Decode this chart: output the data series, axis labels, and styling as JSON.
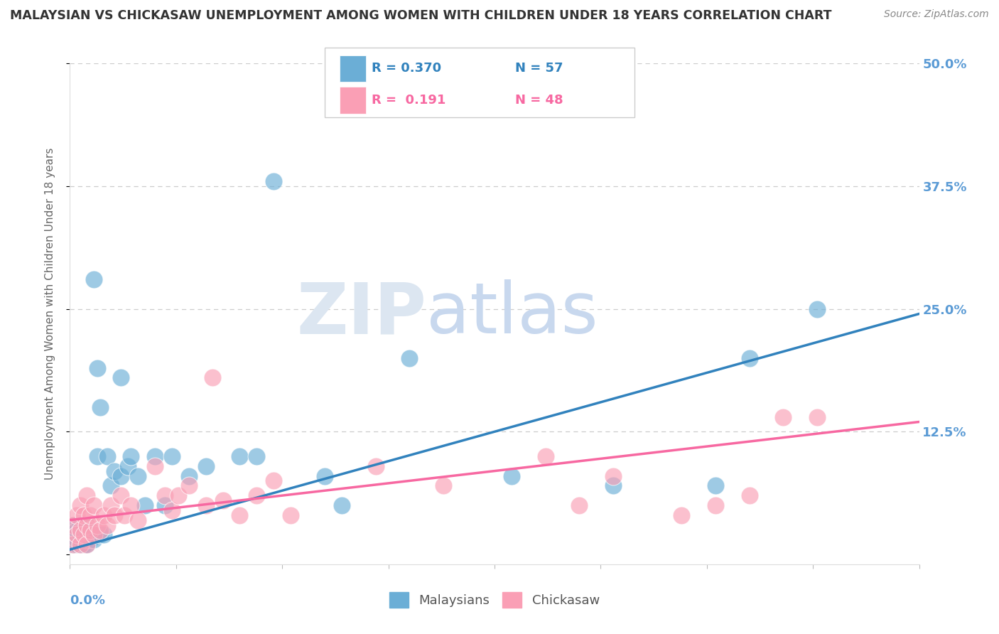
{
  "title": "MALAYSIAN VS CHICKASAW UNEMPLOYMENT AMONG WOMEN WITH CHILDREN UNDER 18 YEARS CORRELATION CHART",
  "source": "Source: ZipAtlas.com",
  "ylabel": "Unemployment Among Women with Children Under 18 years",
  "xlim": [
    0.0,
    0.25
  ],
  "ylim": [
    -0.01,
    0.5
  ],
  "yticks": [
    0.0,
    0.125,
    0.25,
    0.375,
    0.5
  ],
  "ytick_labels": [
    "",
    "12.5%",
    "25.0%",
    "37.5%",
    "50.0%"
  ],
  "watermark_zip": "ZIP",
  "watermark_atlas": "atlas",
  "legend_r1": "R = 0.370",
  "legend_n1": "N = 57",
  "legend_r2": "R =  0.191",
  "legend_n2": "N = 48",
  "malaysian_color": "#6baed6",
  "chickasaw_color": "#fa9fb5",
  "malaysian_line_color": "#3182bd",
  "chickasaw_line_color": "#f768a1",
  "mal_line_x": [
    0.0,
    0.25
  ],
  "mal_line_y": [
    0.005,
    0.245
  ],
  "chk_line_x": [
    0.0,
    0.25
  ],
  "chk_line_y": [
    0.035,
    0.135
  ],
  "malaysian_x": [
    0.001,
    0.001,
    0.001,
    0.002,
    0.002,
    0.002,
    0.002,
    0.003,
    0.003,
    0.003,
    0.003,
    0.003,
    0.004,
    0.004,
    0.004,
    0.004,
    0.005,
    0.005,
    0.005,
    0.005,
    0.005,
    0.006,
    0.006,
    0.006,
    0.007,
    0.007,
    0.007,
    0.008,
    0.008,
    0.009,
    0.009,
    0.01,
    0.011,
    0.012,
    0.013,
    0.015,
    0.015,
    0.017,
    0.018,
    0.02,
    0.022,
    0.025,
    0.028,
    0.03,
    0.035,
    0.04,
    0.05,
    0.055,
    0.06,
    0.075,
    0.08,
    0.1,
    0.13,
    0.16,
    0.19,
    0.2,
    0.22
  ],
  "malaysian_y": [
    0.01,
    0.02,
    0.03,
    0.01,
    0.015,
    0.02,
    0.025,
    0.01,
    0.015,
    0.02,
    0.025,
    0.03,
    0.01,
    0.015,
    0.025,
    0.03,
    0.01,
    0.015,
    0.02,
    0.025,
    0.03,
    0.015,
    0.02,
    0.025,
    0.015,
    0.02,
    0.28,
    0.1,
    0.19,
    0.02,
    0.15,
    0.02,
    0.1,
    0.07,
    0.085,
    0.08,
    0.18,
    0.09,
    0.1,
    0.08,
    0.05,
    0.1,
    0.05,
    0.1,
    0.08,
    0.09,
    0.1,
    0.1,
    0.38,
    0.08,
    0.05,
    0.2,
    0.08,
    0.07,
    0.07,
    0.2,
    0.25
  ],
  "chickasaw_x": [
    0.001,
    0.001,
    0.002,
    0.002,
    0.003,
    0.003,
    0.003,
    0.004,
    0.004,
    0.005,
    0.005,
    0.005,
    0.006,
    0.006,
    0.007,
    0.007,
    0.008,
    0.009,
    0.01,
    0.011,
    0.012,
    0.013,
    0.015,
    0.016,
    0.018,
    0.02,
    0.025,
    0.028,
    0.03,
    0.032,
    0.035,
    0.04,
    0.042,
    0.045,
    0.05,
    0.055,
    0.06,
    0.065,
    0.09,
    0.11,
    0.14,
    0.15,
    0.16,
    0.18,
    0.19,
    0.2,
    0.21,
    0.22
  ],
  "chickasaw_y": [
    0.01,
    0.03,
    0.02,
    0.04,
    0.01,
    0.025,
    0.05,
    0.02,
    0.04,
    0.01,
    0.03,
    0.06,
    0.025,
    0.04,
    0.02,
    0.05,
    0.03,
    0.025,
    0.04,
    0.03,
    0.05,
    0.04,
    0.06,
    0.04,
    0.05,
    0.035,
    0.09,
    0.06,
    0.045,
    0.06,
    0.07,
    0.05,
    0.18,
    0.055,
    0.04,
    0.06,
    0.075,
    0.04,
    0.09,
    0.07,
    0.1,
    0.05,
    0.08,
    0.04,
    0.05,
    0.06,
    0.14,
    0.14
  ],
  "background_color": "#ffffff",
  "grid_color": "#cccccc",
  "title_color": "#333333",
  "tick_color": "#5b9bd5",
  "watermark_color": "#dce6f1",
  "watermark_atlas_color": "#c8d8ee"
}
